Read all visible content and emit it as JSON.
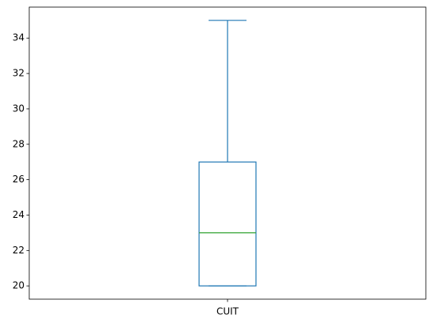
{
  "chart_data": {
    "type": "box",
    "categories": [
      "CUIT"
    ],
    "boxes": [
      {
        "category": "CUIT",
        "whisker_low": 20,
        "q1": 20,
        "median": 23,
        "q3": 27,
        "whisker_high": 35
      }
    ],
    "y_ticks": [
      20,
      22,
      24,
      26,
      28,
      30,
      32,
      34
    ],
    "ylim": [
      19.25,
      35.75
    ],
    "grid": false,
    "colors": {
      "box": "#1f77b4",
      "median": "#2ca02c",
      "axes": "#000000"
    }
  }
}
